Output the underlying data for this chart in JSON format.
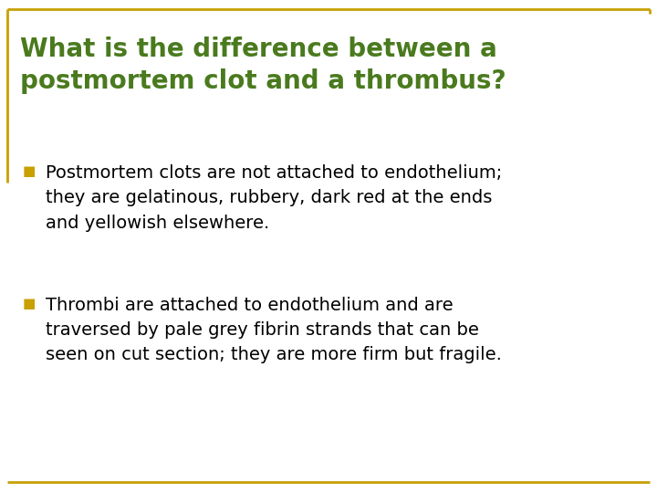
{
  "title_line1": "What is the difference between a",
  "title_line2": "postmortem clot and a thrombus?",
  "title_color": "#4a7a1e",
  "bullet_color": "#c8a000",
  "body_color": "#000000",
  "background_color": "#ffffff",
  "border_color": "#c8a000",
  "bullet1_lines": [
    "Postmortem clots are not attached to endothelium;",
    "they are gelatinous, rubbery, dark red at the ends",
    "and yellowish elsewhere."
  ],
  "bullet2_lines": [
    "Thrombi are attached to endothelium and are",
    "traversed by pale grey fibrin strands that can be",
    "seen on cut section; they are more firm but fragile."
  ],
  "title_fontsize": 20,
  "body_fontsize": 14,
  "border_linewidth": 2.0
}
